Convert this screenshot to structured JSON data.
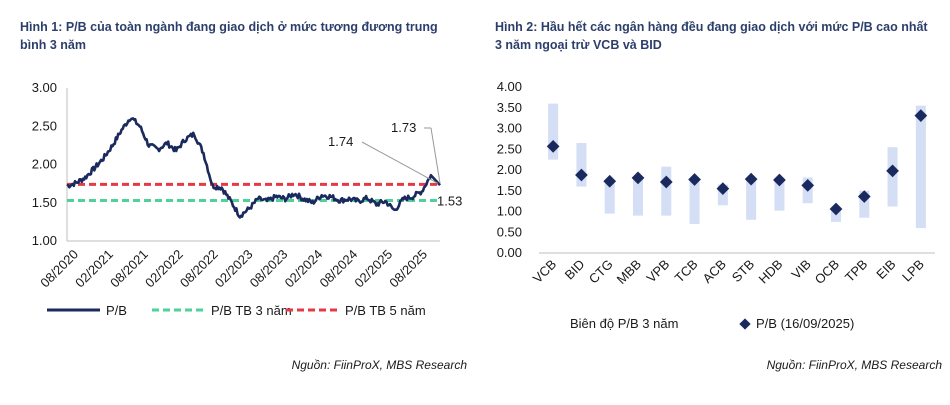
{
  "figures": [
    {
      "title": "Hình 1: P/B của toàn ngành đang giao dịch ở mức tương đương trung bình 3 năm",
      "source": "Nguồn: FiinProX, MBS Research"
    },
    {
      "title": "Hình 2: Hầu hết các ngân hàng đều đang giao dịch với mức P/B cao nhất 3 năm ngoại trừ VCB và BID",
      "source": "Nguồn: FiinProX, MBS Research"
    }
  ],
  "colors": {
    "pb_line": "#1b2a5e",
    "avg3_line": "#4fd19a",
    "avg5_line": "#e63946",
    "range_bar": "#d4def5",
    "marker": "#1b2a5e",
    "axis": "#bfbfbf",
    "title": "#2c3e6b"
  },
  "chart_data": [
    {
      "type": "line",
      "title": "",
      "xlabel": "",
      "ylabel": "",
      "ylim": [
        1.0,
        3.0
      ],
      "yticks": [
        "1.00",
        "1.50",
        "2.00",
        "2.50",
        "3.00"
      ],
      "x_tick_labels": [
        "08/2020",
        "02/2021",
        "08/2021",
        "02/2022",
        "08/2022",
        "02/2023",
        "08/2023",
        "02/2024",
        "08/2024",
        "02/2025",
        "08/2025"
      ],
      "grid": false,
      "legend_position": "bottom",
      "series": [
        {
          "name": "P/B",
          "style": "solid",
          "x": [
            0,
            0.25,
            0.5,
            0.75,
            1,
            1.25,
            1.5,
            1.75,
            2,
            2.25,
            2.5,
            2.75,
            3,
            3.25,
            3.5,
            3.75,
            4,
            4.25,
            4.5,
            4.75,
            5,
            5.25,
            5.5,
            5.75,
            6,
            6.25,
            6.5,
            6.75,
            7,
            7.25,
            7.5,
            7.75,
            8,
            8.25,
            8.5,
            8.75,
            9,
            9.25,
            9.5,
            9.75,
            10,
            10.25
          ],
          "values": [
            1.72,
            1.76,
            1.83,
            1.95,
            2.08,
            2.25,
            2.45,
            2.62,
            2.5,
            2.25,
            2.2,
            2.28,
            2.18,
            2.33,
            2.4,
            2.15,
            1.72,
            1.7,
            1.52,
            1.33,
            1.42,
            1.55,
            1.52,
            1.58,
            1.55,
            1.62,
            1.55,
            1.5,
            1.6,
            1.58,
            1.53,
            1.55,
            1.52,
            1.56,
            1.48,
            1.52,
            1.4,
            1.55,
            1.58,
            1.65,
            1.86,
            1.73
          ]
        },
        {
          "name": "P/B TB 3 năm",
          "style": "dashed",
          "x": [
            0,
            10.25
          ],
          "values": [
            1.53,
            1.53
          ]
        },
        {
          "name": "P/B TB 5 năm",
          "style": "dashed",
          "x": [
            0,
            10.25
          ],
          "values": [
            1.74,
            1.74
          ]
        }
      ],
      "annotations": [
        "1.74",
        "1.73",
        "1.53"
      ]
    },
    {
      "type": "scatter",
      "title": "",
      "xlabel": "",
      "ylabel": "",
      "ylim": [
        0.0,
        4.0
      ],
      "yticks": [
        "0.00",
        "0.50",
        "1.00",
        "1.50",
        "2.00",
        "2.50",
        "3.00",
        "3.50",
        "4.00"
      ],
      "categories": [
        "VCB",
        "BID",
        "CTG",
        "MBB",
        "VPB",
        "TCB",
        "ACB",
        "STB",
        "HDB",
        "VIB",
        "OCB",
        "TPB",
        "EIB",
        "LPB"
      ],
      "grid": false,
      "legend_position": "bottom",
      "series": [
        {
          "name": "Biên độ P/B 3 năm",
          "low": [
            2.25,
            1.6,
            0.95,
            0.9,
            0.9,
            0.7,
            1.15,
            0.8,
            1.02,
            1.2,
            0.75,
            0.85,
            1.12,
            0.6
          ],
          "high": [
            3.6,
            2.65,
            1.75,
            1.82,
            2.08,
            1.8,
            1.65,
            1.82,
            1.82,
            1.82,
            1.1,
            1.5,
            2.55,
            3.55
          ]
        },
        {
          "name": "P/B (16/09/2025)",
          "values": [
            2.57,
            1.88,
            1.73,
            1.81,
            1.71,
            1.77,
            1.55,
            1.78,
            1.76,
            1.63,
            1.06,
            1.36,
            1.98,
            3.31
          ]
        }
      ]
    }
  ]
}
